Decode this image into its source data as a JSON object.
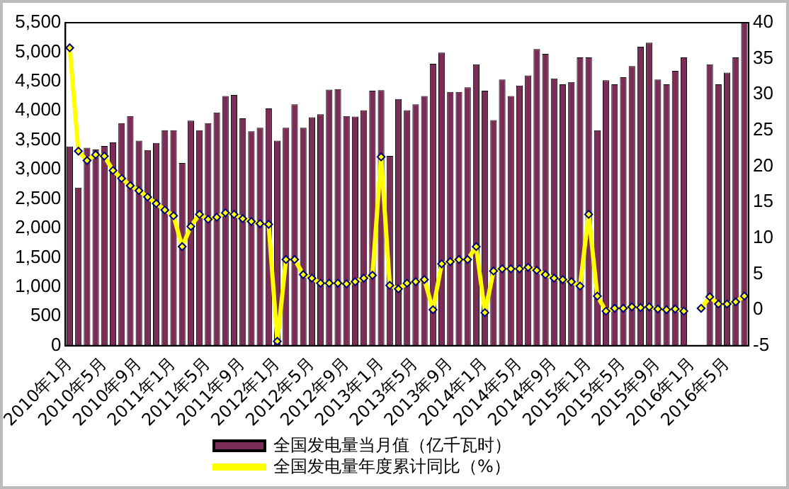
{
  "chart_data": {
    "type": "bar",
    "categories": [
      "2010年1月",
      null,
      null,
      null,
      "2010年5月",
      null,
      null,
      null,
      "2010年9月",
      null,
      null,
      null,
      "2011年1月",
      null,
      null,
      null,
      "2011年5月",
      null,
      null,
      null,
      "2011年9月",
      null,
      null,
      null,
      "2012年1月",
      null,
      null,
      null,
      "2012年5月",
      null,
      null,
      null,
      "2012年9月",
      null,
      null,
      null,
      "2013年1月",
      null,
      null,
      null,
      "2013年5月",
      null,
      null,
      null,
      "2013年9月",
      null,
      null,
      null,
      "2014年1月",
      null,
      null,
      null,
      "2014年5月",
      null,
      null,
      null,
      "2014年9月",
      null,
      null,
      null,
      "2015年1月",
      null,
      null,
      null,
      "2015年5月",
      null,
      null,
      null,
      "2015年9月",
      null,
      null,
      null,
      "2016年1月",
      null,
      null,
      null,
      "2016年5月",
      null,
      null
    ],
    "series": [
      {
        "name": "全国发电量当月值（亿千瓦时）",
        "type": "bar",
        "color": "#7b2d57",
        "values": [
          3390,
          2690,
          3370,
          3340,
          3400,
          3460,
          3790,
          3910,
          3490,
          3330,
          3450,
          3670,
          3670,
          3110,
          3830,
          3670,
          3790,
          3970,
          4250,
          4270,
          3870,
          3650,
          3710,
          4040,
          3490,
          3710,
          4110,
          3710,
          3890,
          3940,
          4360,
          4370,
          3910,
          3900,
          4010,
          4340,
          4350,
          3230,
          4200,
          4010,
          4110,
          4250,
          4800,
          4990,
          4320,
          4320,
          4400,
          4790,
          4340,
          3840,
          4530,
          4250,
          4430,
          4600,
          5050,
          4970,
          4550,
          4450,
          4490,
          4910,
          4910,
          3670,
          4520,
          4450,
          4570,
          4760,
          5090,
          5160,
          4530,
          4450,
          4680,
          4910,
          null,
          null,
          4790,
          4450,
          4650,
          4910,
          5500
        ]
      },
      {
        "name": "全国发电量年度累计同比（%）",
        "type": "line",
        "axis": "y2",
        "color": "#ffff00",
        "values": [
          36.5,
          22.1,
          20.8,
          21.6,
          21.4,
          19.4,
          18.3,
          17.3,
          16.6,
          15.7,
          14.8,
          13.9,
          13.1,
          8.8,
          11.6,
          13.3,
          12.6,
          12.9,
          13.5,
          13.3,
          12.7,
          12.3,
          12.0,
          11.9,
          -4.4,
          7.0,
          7.0,
          4.9,
          4.4,
          3.7,
          3.7,
          3.7,
          3.6,
          3.9,
          4.4,
          4.8,
          21.3,
          3.4,
          2.9,
          3.7,
          3.9,
          4.2,
          0.0,
          6.4,
          6.7,
          7.0,
          7.0,
          8.8,
          -0.4,
          5.4,
          5.7,
          5.7,
          5.7,
          5.9,
          5.5,
          4.9,
          4.4,
          4.2,
          3.9,
          3.3,
          13.3,
          1.9,
          -0.2,
          0.2,
          0.2,
          0.4,
          0.3,
          0.4,
          0.1,
          0.0,
          0.1,
          -0.2,
          null,
          0.2,
          1.8,
          0.8,
          0.8,
          1.1,
          1.9
        ]
      }
    ],
    "ylim": [
      0,
      5500
    ],
    "yticks": [
      0,
      {
        "value": 500,
        "label": "500"
      },
      {
        "value": 1000,
        "label": "1,000"
      },
      {
        "value": 1500,
        "label": "1,500"
      },
      {
        "value": 2000,
        "label": "2,000"
      },
      {
        "value": 2500,
        "label": "2,500"
      },
      {
        "value": 3000,
        "label": "3,000"
      },
      {
        "value": 3500,
        "label": "3,500"
      },
      {
        "value": 4000,
        "label": "4,000"
      },
      {
        "value": 4500,
        "label": "4,500"
      },
      {
        "value": 5000,
        "label": "5,000"
      },
      {
        "value": 5500,
        "label": "5,500"
      }
    ],
    "y2lim": [
      -5,
      40
    ],
    "y2ticks": [
      -5,
      0,
      5,
      10,
      15,
      20,
      25,
      30,
      35,
      40
    ],
    "grid": false,
    "legend": "bottom",
    "marker": "diamond",
    "line_style": "solid"
  }
}
